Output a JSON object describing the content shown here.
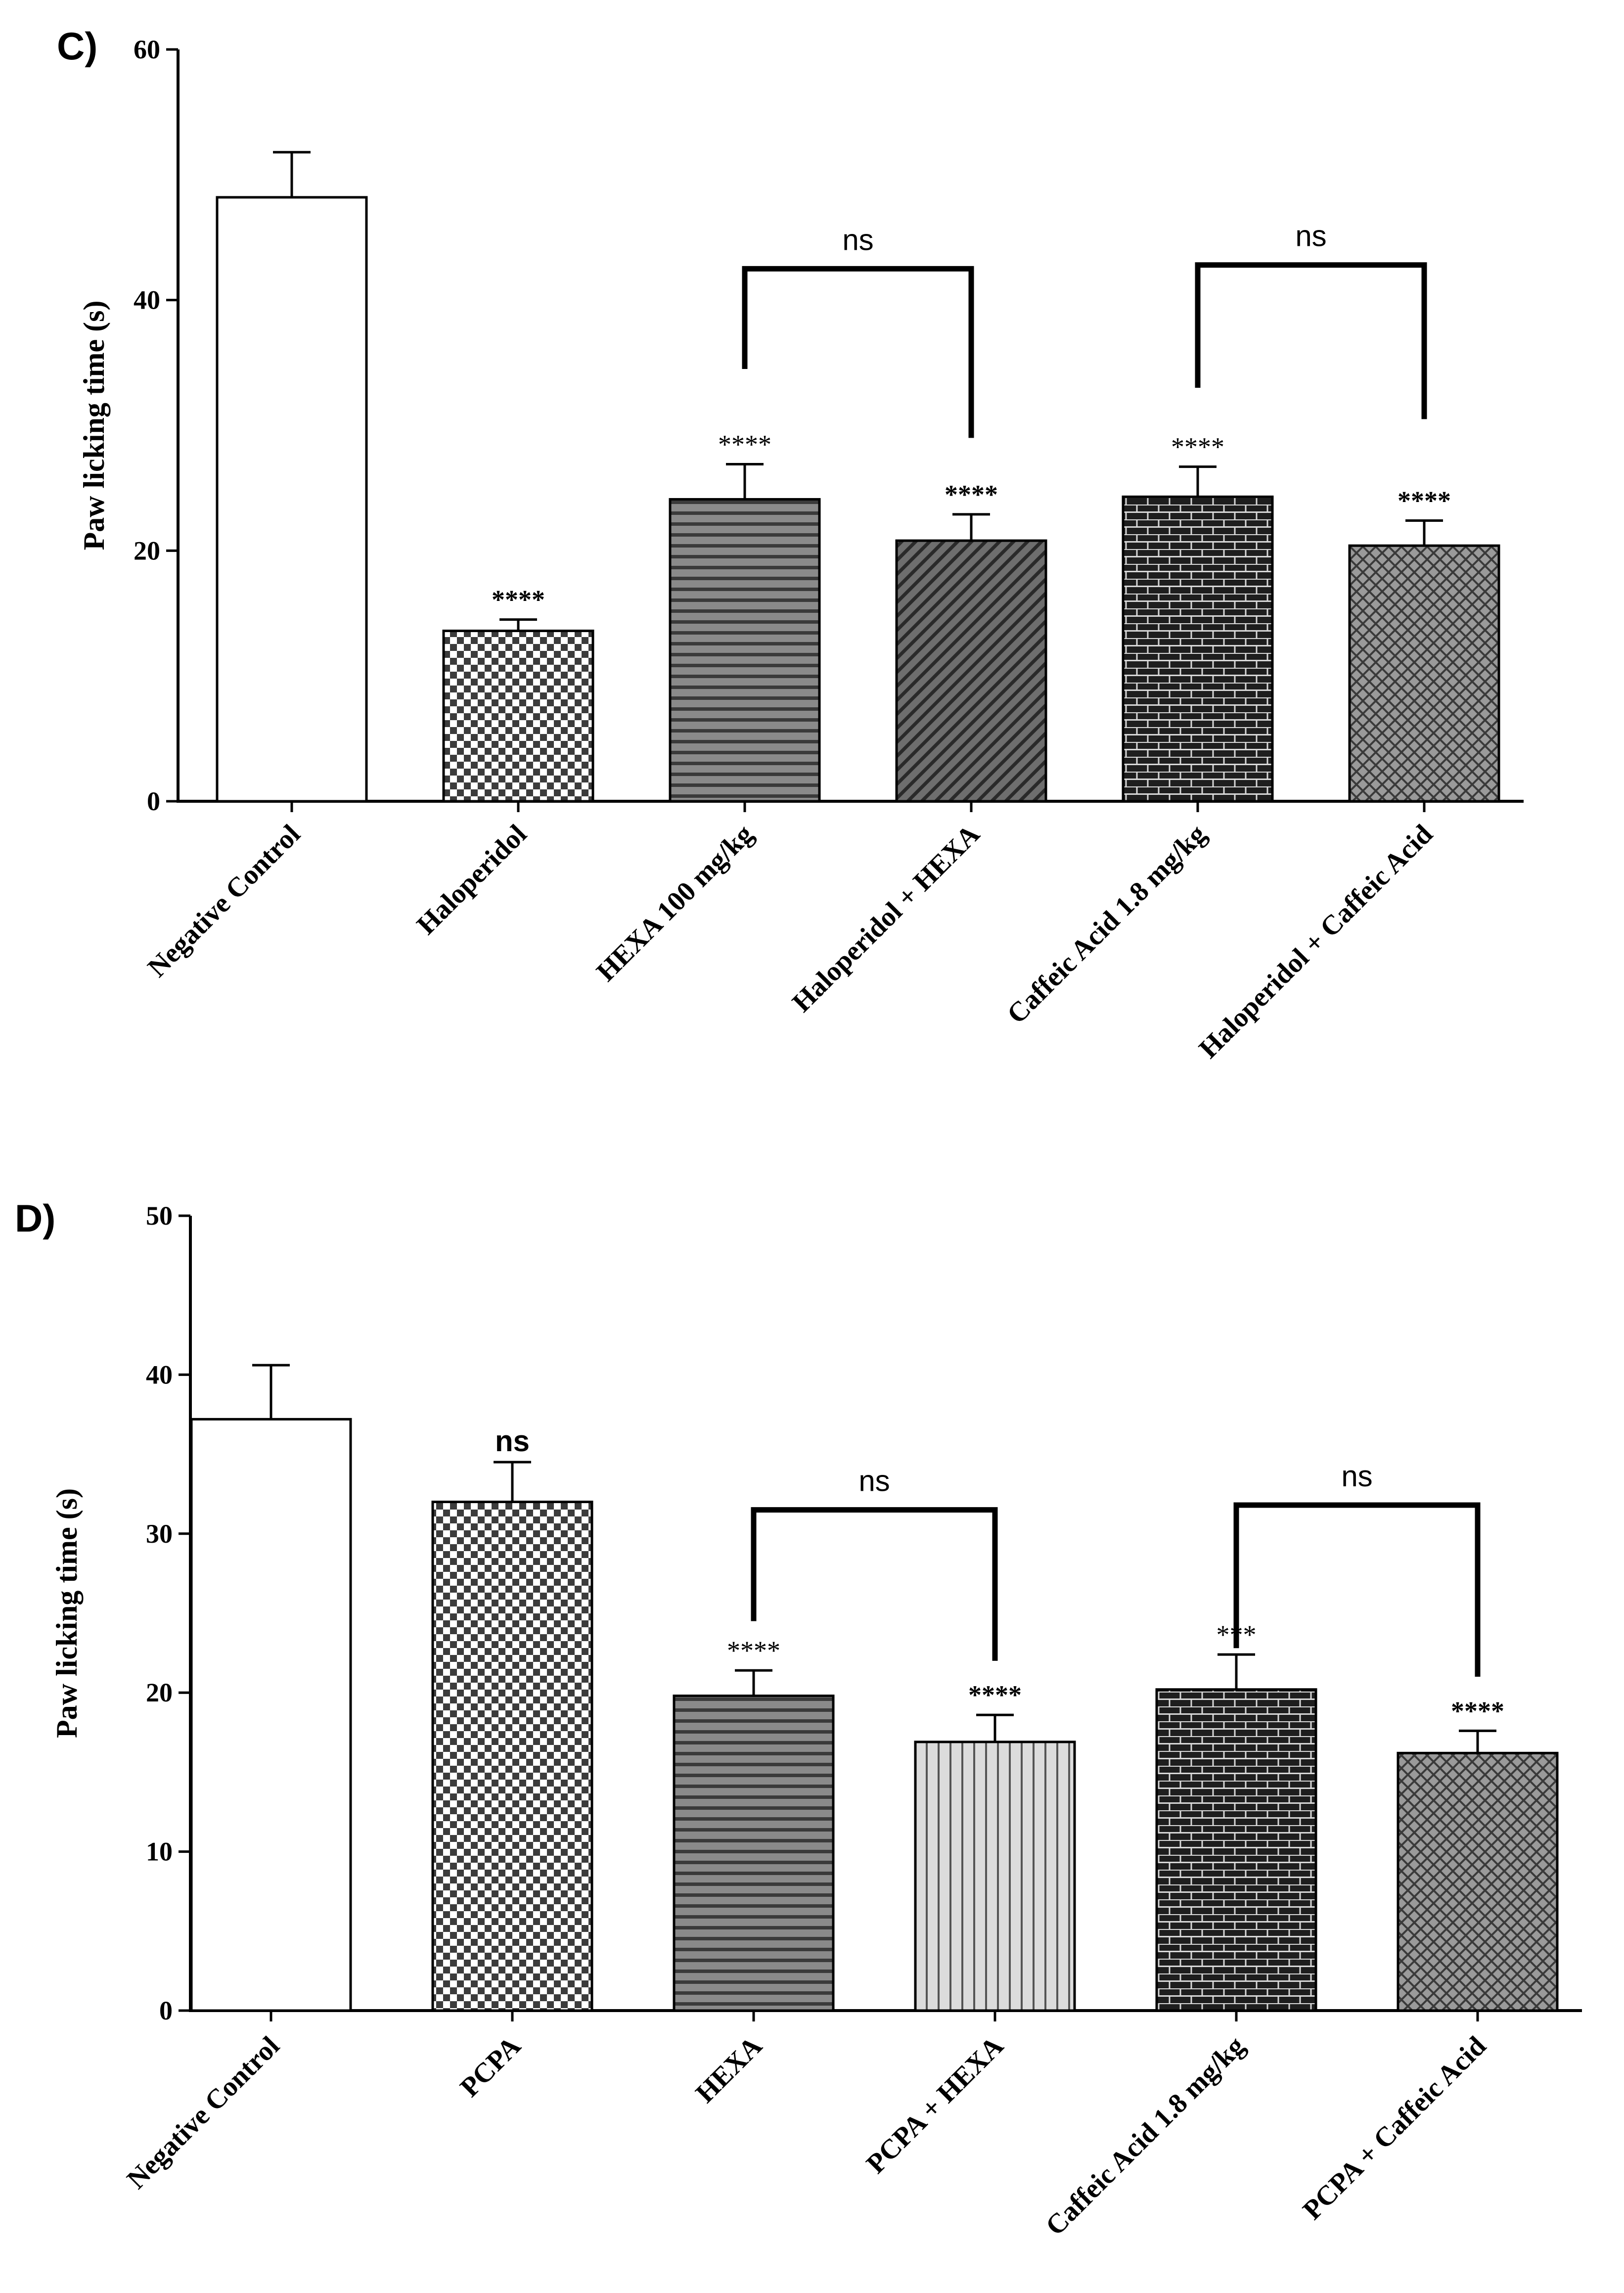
{
  "colors": {
    "axis": "#000000",
    "bar_stroke": "#000000",
    "background": "#ffffff"
  },
  "chart_data": [
    {
      "panel": "C)",
      "type": "bar",
      "ylabel": "Paw licking time (s)",
      "xlabel": "",
      "ylim": [
        0,
        60
      ],
      "yticks": [
        0,
        20,
        40,
        60
      ],
      "categories": [
        "Negative Control",
        "Haloperidol",
        "HEXA 100 mg/kg",
        "Haloperidol + HEXA",
        "Caffeic Acid 1.8 mg/kg",
        "Haloperidol + Caffeic Acid"
      ],
      "values": [
        48.2,
        13.6,
        24.1,
        20.8,
        24.3,
        20.4
      ],
      "errors": [
        3.6,
        0.9,
        2.8,
        2.1,
        2.4,
        2.0
      ],
      "patterns": [
        "white",
        "checker",
        "hstripe",
        "diagonal",
        "brick",
        "weave"
      ],
      "annotations": [
        "",
        "****",
        "****",
        "****",
        "****",
        "****"
      ],
      "annotation_bold": [
        false,
        true,
        false,
        true,
        false,
        true
      ],
      "brackets": [
        {
          "from": 2,
          "to": 3,
          "label": "ns",
          "left_end": 34.5,
          "right_end": 29.0,
          "top": 42.5
        },
        {
          "from": 4,
          "to": 5,
          "label": "ns",
          "left_end": 33.0,
          "right_end": 30.5,
          "top": 42.8
        }
      ]
    },
    {
      "panel": "D)",
      "type": "bar",
      "ylabel": "Paw licking time (s)",
      "xlabel": "",
      "ylim": [
        0,
        50
      ],
      "yticks": [
        0,
        10,
        20,
        30,
        40,
        50
      ],
      "categories": [
        "Negative Control",
        "PCPA",
        "HEXA",
        "PCPA + HEXA",
        "Caffeic Acid 1.8 mg/kg",
        "PCPA + Caffeic Acid"
      ],
      "values": [
        37.2,
        32.0,
        19.8,
        16.9,
        20.2,
        16.2
      ],
      "errors": [
        3.4,
        2.5,
        1.6,
        1.7,
        2.2,
        1.4
      ],
      "patterns": [
        "white",
        "checker",
        "hstripe",
        "vstripe",
        "brick",
        "weave"
      ],
      "annotations": [
        "",
        "ns",
        "****",
        "****",
        "***",
        "****"
      ],
      "annotation_bold": [
        false,
        true,
        false,
        true,
        false,
        true
      ],
      "brackets": [
        {
          "from": 2,
          "to": 3,
          "label": "ns",
          "left_end": 24.5,
          "right_end": 22.0,
          "top": 31.5
        },
        {
          "from": 4,
          "to": 5,
          "label": "ns",
          "left_end": 22.8,
          "right_end": 21.0,
          "top": 31.8
        }
      ]
    }
  ]
}
